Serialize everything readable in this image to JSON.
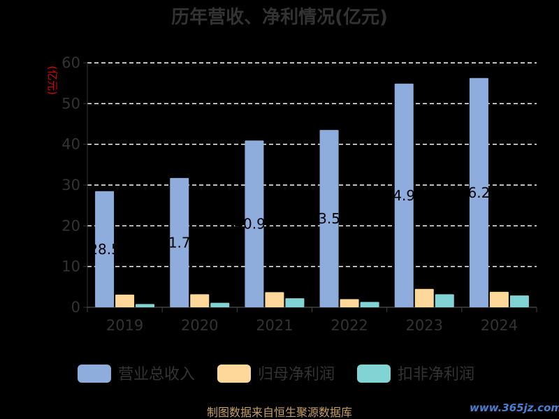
{
  "chart_data": {
    "type": "bar",
    "title": "历年营收、净利情况(亿元)",
    "unit": "(亿元)",
    "categories": [
      "2019",
      "2020",
      "2021",
      "2022",
      "2023",
      "2024"
    ],
    "ylim": [
      0,
      60
    ],
    "yticks": [
      0,
      10,
      20,
      30,
      40,
      50,
      60
    ],
    "grid": true,
    "legend_position": "bottom",
    "series": [
      {
        "name": "营业总收入",
        "color": "#8eacdc",
        "values": [
          28.5,
          31.74,
          40.92,
          43.53,
          54.9,
          56.28
        ],
        "labels": [
          "28.5",
          "31.74",
          "40.92",
          "43.53",
          "54.90",
          "56.28"
        ]
      },
      {
        "name": "归母净利润",
        "color": "#fdd89a",
        "values": [
          3.1,
          3.2,
          3.7,
          2.0,
          4.5,
          3.8
        ]
      },
      {
        "name": "扣非净利润",
        "color": "#82d4d4",
        "values": [
          0.8,
          1.1,
          2.2,
          1.3,
          3.2,
          2.9
        ]
      }
    ]
  },
  "footer": {
    "source": "制图数据来自恒生聚源数据库",
    "watermark": "www.365jz.com"
  }
}
